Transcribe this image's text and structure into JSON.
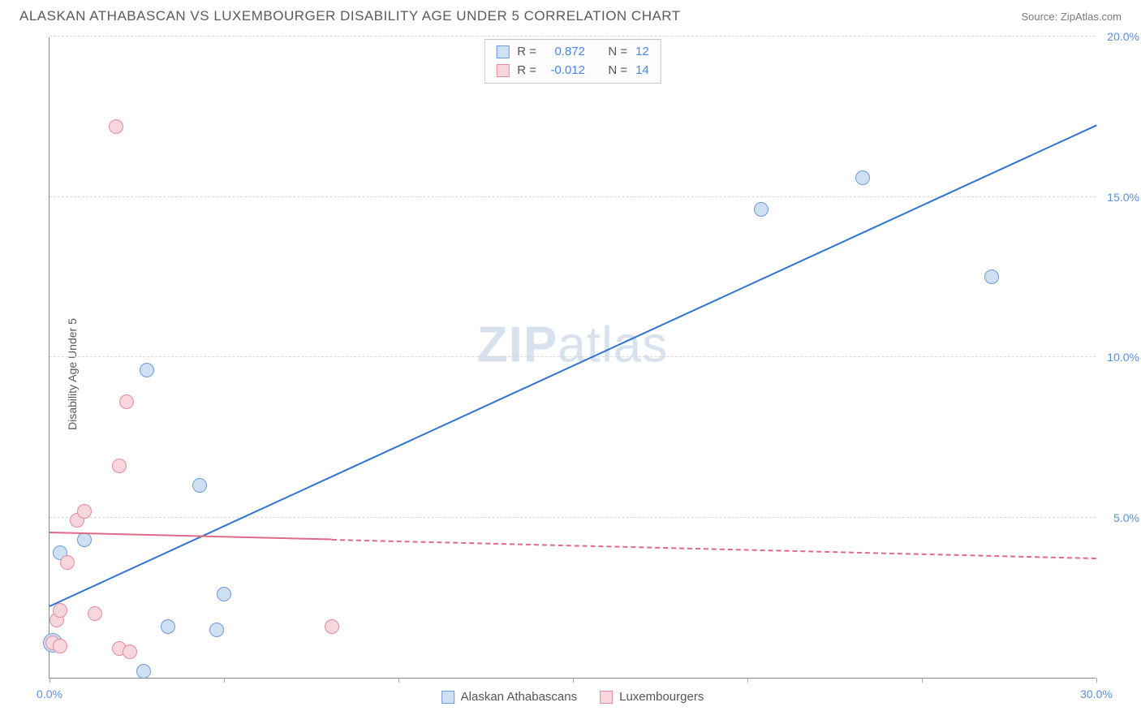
{
  "header": {
    "title": "ALASKAN ATHABASCAN VS LUXEMBOURGER DISABILITY AGE UNDER 5 CORRELATION CHART",
    "source": "Source: ZipAtlas.com"
  },
  "y_axis_label": "Disability Age Under 5",
  "watermark": {
    "bold": "ZIP",
    "light": "atlas"
  },
  "chart": {
    "type": "scatter",
    "background_color": "#ffffff",
    "grid_color": "#d8d8d8",
    "axis_color": "#888888",
    "label_color": "#5b8fd6",
    "label_fontsize": 14,
    "xlim": [
      0,
      30
    ],
    "ylim": [
      0,
      20
    ],
    "x_ticks": [
      0,
      5,
      10,
      15,
      20,
      25,
      30
    ],
    "y_ticks": [
      5,
      10,
      15,
      20
    ],
    "x_tick_labels": [
      "0.0%",
      "",
      "",
      "",
      "",
      "",
      "30.0%"
    ],
    "y_tick_labels": [
      "5.0%",
      "10.0%",
      "15.0%",
      "20.0%"
    ],
    "marker_radius": 9,
    "marker_border_width": 1.2,
    "series": [
      {
        "id": "alaskan",
        "name": "Alaskan Athabascans",
        "fill": "#cfe0f5",
        "stroke": "#6b9cd8",
        "line_color": "#2f74d0",
        "line_width": 2,
        "stats": {
          "R": "0.872",
          "N": "12"
        },
        "points": [
          {
            "x": 0.1,
            "y": 1.1,
            "r": 12
          },
          {
            "x": 0.3,
            "y": 3.9
          },
          {
            "x": 1.0,
            "y": 4.3
          },
          {
            "x": 2.7,
            "y": 0.2
          },
          {
            "x": 3.4,
            "y": 1.6
          },
          {
            "x": 2.8,
            "y": 9.6
          },
          {
            "x": 4.3,
            "y": 6.0
          },
          {
            "x": 5.0,
            "y": 2.6
          },
          {
            "x": 4.8,
            "y": 1.5
          },
          {
            "x": 20.4,
            "y": 14.6
          },
          {
            "x": 23.3,
            "y": 15.6
          },
          {
            "x": 27.0,
            "y": 12.5
          }
        ],
        "trend": {
          "x1": 0,
          "y1": 2.2,
          "x2": 30,
          "y2": 17.2,
          "dashed_from_x": 30
        }
      },
      {
        "id": "lux",
        "name": "Luxembourgers",
        "fill": "#f7d6de",
        "stroke": "#e48aa0",
        "line_color": "#e06a87",
        "line_width": 2,
        "stats": {
          "R": "-0.012",
          "N": "14"
        },
        "points": [
          {
            "x": 0.1,
            "y": 1.1
          },
          {
            "x": 0.2,
            "y": 1.8
          },
          {
            "x": 0.3,
            "y": 2.1
          },
          {
            "x": 0.3,
            "y": 1.0
          },
          {
            "x": 0.5,
            "y": 3.6
          },
          {
            "x": 0.8,
            "y": 4.9
          },
          {
            "x": 1.0,
            "y": 5.2
          },
          {
            "x": 1.3,
            "y": 2.0
          },
          {
            "x": 2.0,
            "y": 0.9
          },
          {
            "x": 2.0,
            "y": 6.6
          },
          {
            "x": 2.2,
            "y": 8.6
          },
          {
            "x": 1.9,
            "y": 17.2
          },
          {
            "x": 2.3,
            "y": 0.8
          },
          {
            "x": 8.1,
            "y": 1.6
          }
        ],
        "trend": {
          "x1": 0,
          "y1": 4.5,
          "x2": 30,
          "y2": 3.7,
          "dashed_from_x": 8.1
        }
      }
    ]
  },
  "stats_box": {
    "rows": [
      {
        "swatch_fill": "#cfe0f5",
        "swatch_stroke": "#6b9cd8",
        "r_label": "R =",
        "r_val": "0.872",
        "n_label": "N =",
        "n_val": "12"
      },
      {
        "swatch_fill": "#f7d6de",
        "swatch_stroke": "#e48aa0",
        "r_label": "R =",
        "r_val": "-0.012",
        "n_label": "N =",
        "n_val": "14"
      }
    ]
  },
  "legend": {
    "items": [
      {
        "fill": "#cfe0f5",
        "stroke": "#6b9cd8",
        "label": "Alaskan Athabascans"
      },
      {
        "fill": "#f7d6de",
        "stroke": "#e48aa0",
        "label": "Luxembourgers"
      }
    ]
  }
}
